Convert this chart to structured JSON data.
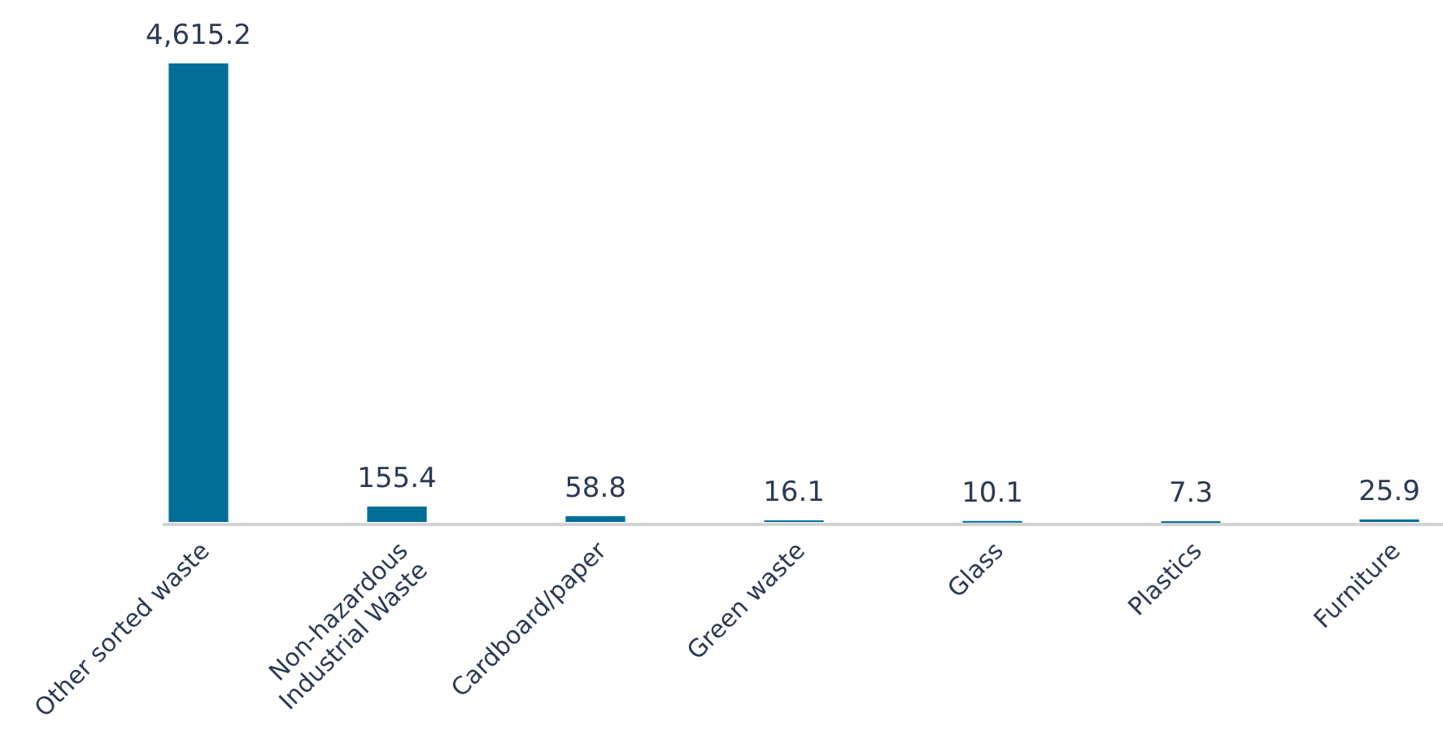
{
  "chart_data": {
    "type": "bar",
    "categories": [
      "Other sorted waste",
      "Non-hazardous Industrial Waste",
      "Cardboard/paper",
      "Green waste",
      "Glass",
      "Plastics",
      "Furniture"
    ],
    "values": [
      4615.2,
      155.4,
      58.8,
      16.1,
      10.1,
      7.3,
      25.9
    ],
    "value_labels": [
      "4,615.2",
      "155.4",
      "58.8",
      "16.1",
      "10.1",
      "7.3",
      "25.9"
    ],
    "color": "#006e96"
  }
}
